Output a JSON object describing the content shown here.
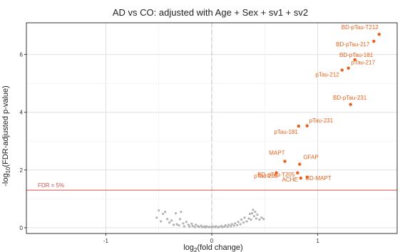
{
  "chart_data": {
    "type": "scatter",
    "title": "AD vs CO: adjusted with Age + Sex + sv1 + sv2",
    "xlabel": {
      "pre": "log",
      "sub": "2",
      "post": "(fold change)"
    },
    "ylabel": {
      "pre": "-log",
      "sub": "10",
      "post": "(FDR-adjusted p-value)"
    },
    "xlim": [
      -1.75,
      1.75
    ],
    "ylim": [
      -0.2,
      7.1
    ],
    "x_ticks": [
      -1,
      0,
      1
    ],
    "y_ticks": [
      0,
      2,
      4,
      6
    ],
    "x_tick_labels": [
      "-1",
      "0",
      "1"
    ],
    "y_tick_labels": [
      "0",
      "2",
      "4",
      "6"
    ],
    "grid": true,
    "threshold": {
      "label": "FDR = 5%",
      "y": 1.301,
      "color": "#d94f4f"
    },
    "reference_line": {
      "x": 0,
      "style": "dashed",
      "color": "#c8c8c8"
    },
    "colors": {
      "significant": "#e8601c",
      "non_significant": "#b3b3b3",
      "panel_border": "#333333",
      "grid": "#e0e0e0"
    },
    "significant_points": [
      {
        "label": "BD-pTau-T212",
        "x": 1.58,
        "y": 6.7
      },
      {
        "label": "BD-pTau-217",
        "x": 1.53,
        "y": 6.46
      },
      {
        "label": "BD-pTau-181",
        "x": 1.35,
        "y": 5.82
      },
      {
        "label": "pTau-217",
        "x": 1.29,
        "y": 5.53
      },
      {
        "label": "pTau-212",
        "x": 1.23,
        "y": 5.46
      },
      {
        "label": "BD-pTau-231",
        "x": 1.31,
        "y": 4.27
      },
      {
        "label": "pTau-231",
        "x": 0.9,
        "y": 3.53
      },
      {
        "label": "pTau-181",
        "x": 0.82,
        "y": 3.52
      },
      {
        "label": "MAPT",
        "x": 0.69,
        "y": 2.3
      },
      {
        "label": "GFAP",
        "x": 0.83,
        "y": 2.2
      },
      {
        "label": "BD-pTau-T205",
        "x": 0.81,
        "y": 1.9
      },
      {
        "label": "pTau-205",
        "x": 0.61,
        "y": 1.9
      },
      {
        "label": "ACHE",
        "x": 0.84,
        "y": 1.72
      },
      {
        "label": "BD-MAPT",
        "x": 0.9,
        "y": 1.75
      }
    ],
    "nonsignificant_points": [
      [
        -0.52,
        0.35
      ],
      [
        -0.5,
        0.6
      ],
      [
        -0.48,
        0.22
      ],
      [
        -0.46,
        0.48
      ],
      [
        -0.44,
        0.55
      ],
      [
        -0.42,
        0.3
      ],
      [
        -0.4,
        0.18
      ],
      [
        -0.38,
        0.25
      ],
      [
        -0.36,
        0.1
      ],
      [
        -0.34,
        0.5
      ],
      [
        -0.33,
        0.12
      ],
      [
        -0.31,
        0.08
      ],
      [
        -0.3,
        0.3
      ],
      [
        -0.29,
        0.55
      ],
      [
        -0.27,
        0.15
      ],
      [
        -0.26,
        0.05
      ],
      [
        -0.24,
        0.2
      ],
      [
        -0.22,
        0.1
      ],
      [
        -0.21,
        0.04
      ],
      [
        -0.19,
        0.14
      ],
      [
        -0.18,
        0.06
      ],
      [
        -0.16,
        0.02
      ],
      [
        -0.15,
        0.1
      ],
      [
        -0.13,
        0.05
      ],
      [
        -0.12,
        0.03
      ],
      [
        -0.1,
        0.07
      ],
      [
        -0.09,
        0.02
      ],
      [
        -0.07,
        0.04
      ],
      [
        -0.06,
        0.01
      ],
      [
        -0.05,
        0.05
      ],
      [
        -0.03,
        0.02
      ],
      [
        -0.02,
        0.03
      ],
      [
        0.0,
        0.01
      ],
      [
        0.01,
        0.04
      ],
      [
        0.03,
        0.02
      ],
      [
        0.04,
        0.05
      ],
      [
        0.06,
        0.01
      ],
      [
        0.07,
        0.03
      ],
      [
        0.09,
        0.06
      ],
      [
        0.1,
        0.02
      ],
      [
        0.12,
        0.04
      ],
      [
        0.13,
        0.08
      ],
      [
        0.15,
        0.03
      ],
      [
        0.16,
        0.1
      ],
      [
        0.18,
        0.05
      ],
      [
        0.19,
        0.12
      ],
      [
        0.21,
        0.07
      ],
      [
        0.22,
        0.15
      ],
      [
        0.24,
        0.09
      ],
      [
        0.25,
        0.2
      ],
      [
        0.27,
        0.12
      ],
      [
        0.28,
        0.28
      ],
      [
        0.3,
        0.18
      ],
      [
        0.31,
        0.35
      ],
      [
        0.33,
        0.22
      ],
      [
        0.35,
        0.32
      ],
      [
        0.36,
        0.48
      ],
      [
        0.37,
        0.28
      ],
      [
        0.38,
        0.5
      ],
      [
        0.39,
        0.62
      ],
      [
        0.4,
        0.4
      ],
      [
        0.41,
        0.55
      ],
      [
        0.42,
        0.32
      ],
      [
        0.43,
        0.45
      ],
      [
        0.45,
        0.28
      ],
      [
        0.47,
        0.35
      ],
      [
        0.49,
        0.3
      ]
    ]
  }
}
